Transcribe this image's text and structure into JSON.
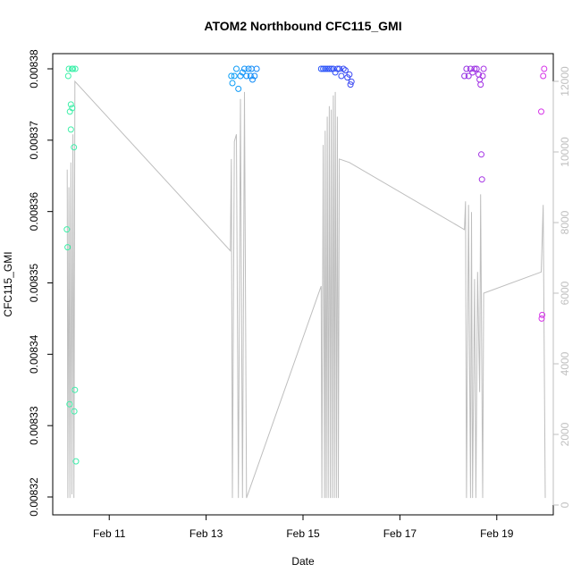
{
  "chart_data": {
    "type": "scatter",
    "title": "ATOM2 Northbound CFC115_GMI",
    "xlabel": "Date",
    "ylabel": "CFC115_GMI",
    "xlim": [
      "2016-02-09T20:00",
      "2016-02-20T04:00"
    ],
    "ylim": [
      0.00832,
      0.00838
    ],
    "y2lim": [
      0,
      12500
    ],
    "x_ticks": [
      {
        "value": "2016-02-11T00:00",
        "label": "Feb 11"
      },
      {
        "value": "2016-02-13T00:00",
        "label": "Feb 13"
      },
      {
        "value": "2016-02-15T00:00",
        "label": "Feb 15"
      },
      {
        "value": "2016-02-17T00:00",
        "label": "Feb 17"
      },
      {
        "value": "2016-02-19T00:00",
        "label": "Feb 19"
      }
    ],
    "y_ticks": [
      {
        "value": 0.00832,
        "label": "0.00832"
      },
      {
        "value": 0.00833,
        "label": "0.00833"
      },
      {
        "value": 0.00834,
        "label": "0.00834"
      },
      {
        "value": 0.00835,
        "label": "0.00835"
      },
      {
        "value": 0.00836,
        "label": "0.00836"
      },
      {
        "value": 0.00837,
        "label": "0.00837"
      },
      {
        "value": 0.00838,
        "label": "0.00838"
      }
    ],
    "y2_ticks": [
      {
        "value": 0,
        "label": "0"
      },
      {
        "value": 2000,
        "label": "2000"
      },
      {
        "value": 4000,
        "label": "4000"
      },
      {
        "value": 6000,
        "label": "6000"
      },
      {
        "value": 8000,
        "label": "8000"
      },
      {
        "value": 10000,
        "label": "10000"
      },
      {
        "value": 12000,
        "label": "12000"
      }
    ],
    "grid": false,
    "legend": "none",
    "colors": {
      "altitude_line": "#bebebe",
      "point_gradient": [
        "#3df0a8",
        "#00c8f0",
        "#1e5cff",
        "#6a2fe0",
        "#d633e8"
      ]
    },
    "series": [
      {
        "points": [
          [
            "2016-02-10T03:00",
            0.0083575
          ],
          [
            "2016-02-10T03:20",
            0.008355
          ],
          [
            "2016-02-10T03:40",
            0.008379
          ],
          [
            "2016-02-10T04:00",
            0.00838
          ],
          [
            "2016-02-10T04:30",
            0.008374
          ],
          [
            "2016-02-10T05:00",
            0.008375
          ],
          [
            "2016-02-10T05:30",
            0.00838
          ],
          [
            "2016-02-10T05:00",
            0.0083715
          ],
          [
            "2016-02-10T04:20",
            0.008333
          ],
          [
            "2016-02-10T05:40",
            0.0083745
          ],
          [
            "2016-02-10T06:00",
            0.00838
          ],
          [
            "2016-02-10T06:30",
            0.008369
          ],
          [
            "2016-02-10T06:40",
            0.008332
          ],
          [
            "2016-02-10T07:00",
            0.008335
          ],
          [
            "2016-02-10T07:10",
            0.00838
          ],
          [
            "2016-02-10T07:30",
            0.008325
          ],
          [
            "2016-02-13T12:30",
            0.008379
          ],
          [
            "2016-02-13T13:00",
            0.008378
          ],
          [
            "2016-02-13T14:00",
            0.008379
          ],
          [
            "2016-02-13T15:00",
            0.00838
          ],
          [
            "2016-02-13T16:00",
            0.0083772
          ],
          [
            "2016-02-13T17:00",
            0.008379
          ],
          [
            "2016-02-13T18:00",
            0.0083795
          ],
          [
            "2016-02-13T19:00",
            0.00838
          ],
          [
            "2016-02-13T20:00",
            0.008379
          ],
          [
            "2016-02-13T21:00",
            0.00838
          ],
          [
            "2016-02-13T22:00",
            0.008379
          ],
          [
            "2016-02-13T22:30",
            0.00838
          ],
          [
            "2016-02-13T23:00",
            0.0083785
          ],
          [
            "2016-02-14T00:00",
            0.008379
          ],
          [
            "2016-02-14T01:00",
            0.00838
          ],
          [
            "2016-02-15T09:00",
            0.00838
          ],
          [
            "2016-02-15T10:00",
            0.00838
          ],
          [
            "2016-02-15T11:00",
            0.00838
          ],
          [
            "2016-02-15T12:00",
            0.00838
          ],
          [
            "2016-02-15T13:00",
            0.00838
          ],
          [
            "2016-02-15T14:00",
            0.00838
          ],
          [
            "2016-02-15T15:00",
            0.00838
          ],
          [
            "2016-02-15T16:00",
            0.0083795
          ],
          [
            "2016-02-15T17:00",
            0.00838
          ],
          [
            "2016-02-15T18:00",
            0.00838
          ],
          [
            "2016-02-15T19:00",
            0.008379
          ],
          [
            "2016-02-15T20:00",
            0.00838
          ],
          [
            "2016-02-15T21:00",
            0.0083798
          ],
          [
            "2016-02-15T22:00",
            0.0083788
          ],
          [
            "2016-02-15T23:00",
            0.0083792
          ],
          [
            "2016-02-15T23:30",
            0.0083778
          ],
          [
            "2016-02-16T00:00",
            0.0083782
          ],
          [
            "2016-02-18T08:00",
            0.008379
          ],
          [
            "2016-02-18T09:00",
            0.00838
          ],
          [
            "2016-02-18T10:00",
            0.008379
          ],
          [
            "2016-02-18T11:00",
            0.00838
          ],
          [
            "2016-02-18T12:00",
            0.0083795
          ],
          [
            "2016-02-18T13:00",
            0.00838
          ],
          [
            "2016-02-18T14:00",
            0.00838
          ],
          [
            "2016-02-18T15:00",
            0.0083792
          ],
          [
            "2016-02-18T15:30",
            0.0083785
          ],
          [
            "2016-02-18T16:00",
            0.0083778
          ],
          [
            "2016-02-18T16:20",
            0.008368
          ],
          [
            "2016-02-18T16:40",
            0.0083645
          ],
          [
            "2016-02-18T17:00",
            0.008379
          ],
          [
            "2016-02-18T17:30",
            0.00838
          ],
          [
            "2016-02-19T22:00",
            0.008374
          ],
          [
            "2016-02-19T23:00",
            0.008379
          ],
          [
            "2016-02-19T23:30",
            0.00838
          ],
          [
            "2016-02-19T22:30",
            0.0083455
          ],
          [
            "2016-02-19T22:15",
            0.008345
          ]
        ]
      },
      {
        "name": "",
        "axis": "right",
        "points": [
          [
            "2016-02-10T03:10",
            9500
          ],
          [
            "2016-02-10T03:30",
            200
          ],
          [
            "2016-02-10T04:00",
            9000
          ],
          [
            "2016-02-10T04:30",
            200
          ],
          [
            "2016-02-10T05:00",
            9700
          ],
          [
            "2016-02-10T05:30",
            300
          ],
          [
            "2016-02-10T06:00",
            10500
          ],
          [
            "2016-02-10T06:30",
            200
          ],
          [
            "2016-02-10T07:00",
            12000
          ],
          [
            "2016-02-13T12:00",
            7200
          ],
          [
            "2016-02-13T12:30",
            9800
          ],
          [
            "2016-02-13T13:00",
            200
          ],
          [
            "2016-02-13T14:00",
            10300
          ],
          [
            "2016-02-13T15:00",
            10500
          ],
          [
            "2016-02-13T16:00",
            200
          ],
          [
            "2016-02-13T17:00",
            11500
          ],
          [
            "2016-02-13T18:00",
            200
          ],
          [
            "2016-02-13T19:00",
            11700
          ],
          [
            "2016-02-13T20:00",
            200
          ],
          [
            "2016-02-15T09:00",
            6200
          ],
          [
            "2016-02-15T09:20",
            200
          ],
          [
            "2016-02-15T10:00",
            10200
          ],
          [
            "2016-02-15T10:40",
            200
          ],
          [
            "2016-02-15T11:00",
            10600
          ],
          [
            "2016-02-15T11:30",
            200
          ],
          [
            "2016-02-15T12:00",
            11000
          ],
          [
            "2016-02-15T12:30",
            200
          ],
          [
            "2016-02-15T13:00",
            11300
          ],
          [
            "2016-02-15T13:30",
            200
          ],
          [
            "2016-02-15T14:00",
            11200
          ],
          [
            "2016-02-15T14:30",
            200
          ],
          [
            "2016-02-15T15:00",
            11600
          ],
          [
            "2016-02-15T15:30",
            200
          ],
          [
            "2016-02-15T16:00",
            11700
          ],
          [
            "2016-02-15T16:30",
            200
          ],
          [
            "2016-02-15T17:00",
            11000
          ],
          [
            "2016-02-15T17:30",
            200
          ],
          [
            "2016-02-15T18:00",
            9800
          ],
          [
            "2016-02-15T23:00",
            9700
          ],
          [
            "2016-02-18T08:00",
            7800
          ],
          [
            "2016-02-18T08:30",
            8600
          ],
          [
            "2016-02-18T09:00",
            200
          ],
          [
            "2016-02-18T10:00",
            8500
          ],
          [
            "2016-02-18T11:00",
            200
          ],
          [
            "2016-02-18T11:30",
            8300
          ],
          [
            "2016-02-18T12:00",
            200
          ],
          [
            "2016-02-18T13:00",
            6400
          ],
          [
            "2016-02-18T13:40",
            200
          ],
          [
            "2016-02-18T14:30",
            6600
          ],
          [
            "2016-02-18T15:30",
            3200
          ],
          [
            "2016-02-18T16:00",
            8800
          ],
          [
            "2016-02-18T17:00",
            200
          ],
          [
            "2016-02-18T17:30",
            6000
          ],
          [
            "2016-02-19T22:00",
            6600
          ],
          [
            "2016-02-19T23:00",
            8500
          ],
          [
            "2016-02-20T00:00",
            200
          ]
        ]
      }
    ]
  }
}
